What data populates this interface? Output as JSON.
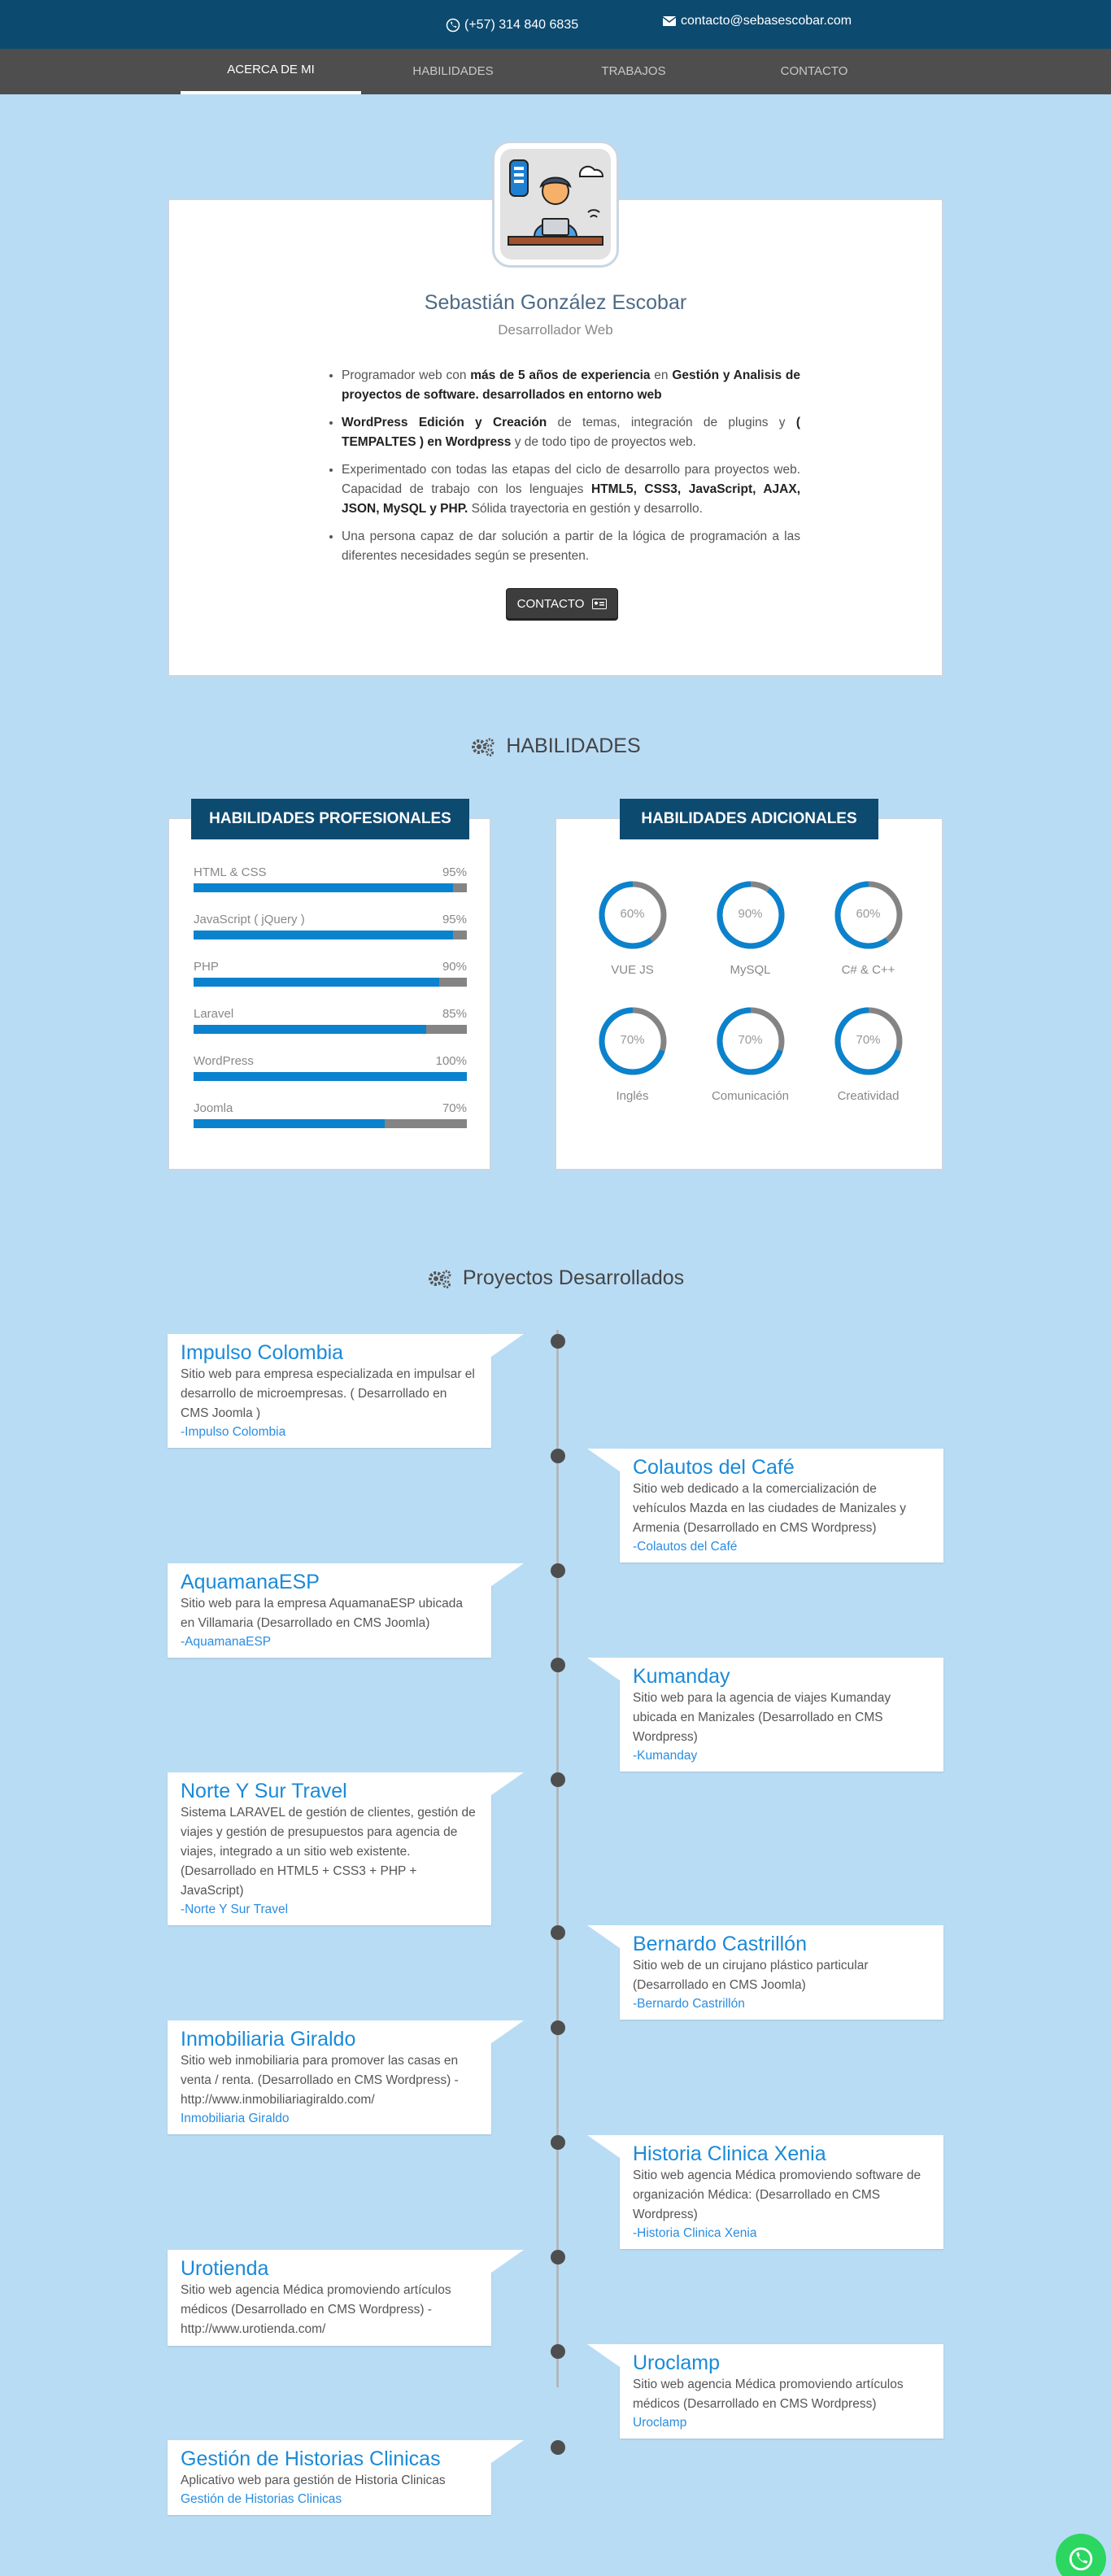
{
  "topbar": {
    "phone": "(+57) 314 840 6835",
    "email": "contacto@sebasescobar.com"
  },
  "nav": {
    "tabs": [
      "ACERCA DE MI",
      "HABILIDADES",
      "TRABAJOS",
      "CONTACTO"
    ],
    "active": "ACERCA DE MI"
  },
  "about": {
    "name": "Sebastián González Escobar",
    "role": "Desarrollador Web",
    "bullets": [
      [
        {
          "t": "Programador web con "
        },
        {
          "b": "más de 5 años de experiencia"
        },
        {
          "t": " en "
        },
        {
          "b": "Gestión y Analisis de proyectos de software. desarrollados en entorno web"
        }
      ],
      [
        {
          "b": "WordPress Edición y Creación"
        },
        {
          "t": " de temas, integración de plugins y "
        },
        {
          "b": "( TEMPALTES ) en Wordpress"
        },
        {
          "t": " y de todo tipo de proyectos web."
        }
      ],
      [
        {
          "t": "Experimentado con todas las etapas del ciclo de desarrollo para proyectos web. Capacidad de trabajo con los lenguajes "
        },
        {
          "b": "HTML5, CSS3, JavaScript, AJAX, JSON, MySQL y PHP."
        },
        {
          "t": " Sólida trayectoria en gestión y desarrollo."
        }
      ],
      [
        {
          "t": "Una persona capaz de dar solución a partir de la lógica de programación a las diferentes necesidades según se presenten."
        }
      ]
    ],
    "contact_button": "CONTACTO"
  },
  "skills": {
    "heading": "HABILIDADES",
    "professional_title": "HABILIDADES PROFESIONALES",
    "additional_title": "HABILIDADES ADICIONALES",
    "professional": [
      {
        "name": "HTML & CSS",
        "pct_label": "95%",
        "value": 95
      },
      {
        "name": "JavaScript ( jQuery )",
        "pct_label": "95%",
        "value": 95
      },
      {
        "name": "PHP",
        "pct_label": "90%",
        "value": 90
      },
      {
        "name": "Laravel",
        "pct_label": "85%",
        "value": 85
      },
      {
        "name": "WordPress",
        "pct_label": "100%",
        "value": 100
      },
      {
        "name": "Joomla",
        "pct_label": "70%",
        "value": 70
      }
    ],
    "additional": [
      {
        "name": "VUE JS",
        "pct_label": "60%",
        "value": 60
      },
      {
        "name": "MySQL",
        "pct_label": "90%",
        "value": 90
      },
      {
        "name": "C# & C++",
        "pct_label": "60%",
        "value": 60
      },
      {
        "name": "Inglés",
        "pct_label": "70%",
        "value": 70
      },
      {
        "name": "Comunicación",
        "pct_label": "70%",
        "value": 70
      },
      {
        "name": "Creatividad",
        "pct_label": "70%",
        "value": 70
      }
    ],
    "colors": {
      "fill": "#0b82cd",
      "track": "#848484"
    }
  },
  "projects": {
    "heading": "Proyectos Desarrollados",
    "items": [
      {
        "title": "Impulso Colombia",
        "desc": "Sitio web para empresa especializada en impulsar el desarrollo de microempresas. ( Desarrollado en CMS Joomla )",
        "link": "-Impulso Colombia"
      },
      {
        "title": "Colautos del Café",
        "desc": "Sitio web dedicado a la comercialización de vehículos Mazda en las ciudades de Manizales y Armenia (Desarrollado en CMS Wordpress)",
        "link": "-Colautos del Café"
      },
      {
        "title": "AquamanaESP",
        "desc": "Sitio web para la empresa AquamanaESP ubicada en Villamaria (Desarrollado en CMS Joomla)",
        "link": "-AquamanaESP"
      },
      {
        "title": "Kumanday",
        "desc": "Sitio web para la agencia de viajes Kumanday ubicada en Manizales (Desarrollado en CMS Wordpress)",
        "link": "-Kumanday"
      },
      {
        "title": "Norte Y Sur Travel",
        "desc": "Sistema LARAVEL de gestión de clientes, gestión de viajes y gestión de presupuestos para agencia de viajes, integrado a un sitio web existente. (Desarrollado en HTML5 + CSS3 + PHP + JavaScript)",
        "link": "-Norte Y Sur Travel"
      },
      {
        "title": "Bernardo Castrillón",
        "desc": "Sitio web de un cirujano plástico particular (Desarrollado en CMS Joomla)",
        "link": "-Bernardo Castrillón"
      },
      {
        "title": "Inmobiliaria Giraldo",
        "desc": "Sitio web inmobiliaria para promover las casas en venta / renta. (Desarrollado en CMS Wordpress) - http://www.inmobiliariagiraldo.com/",
        "link": "Inmobiliaria Giraldo"
      },
      {
        "title": "Historia Clinica Xenia",
        "desc": "Sitio web agencia Médica promoviendo software de organización Médica: (Desarrollado en CMS Wordpress)",
        "link": "-Historia Clinica Xenia"
      },
      {
        "title": "Urotienda",
        "desc": "Sitio web agencia Médica promoviendo artículos médicos (Desarrollado en CMS Wordpress) - http://www.urotienda.com/",
        "link": ""
      },
      {
        "title": "Uroclamp",
        "desc": "Sitio web agencia Médica promoviendo artículos médicos (Desarrollado en CMS Wordpress)",
        "link": "Uroclamp"
      },
      {
        "title": "Gestión de Historias Clinicas",
        "desc": "Aplicativo web para gestión de Historia Clinicas",
        "link": "Gestión de Historias Clinicas"
      }
    ]
  }
}
